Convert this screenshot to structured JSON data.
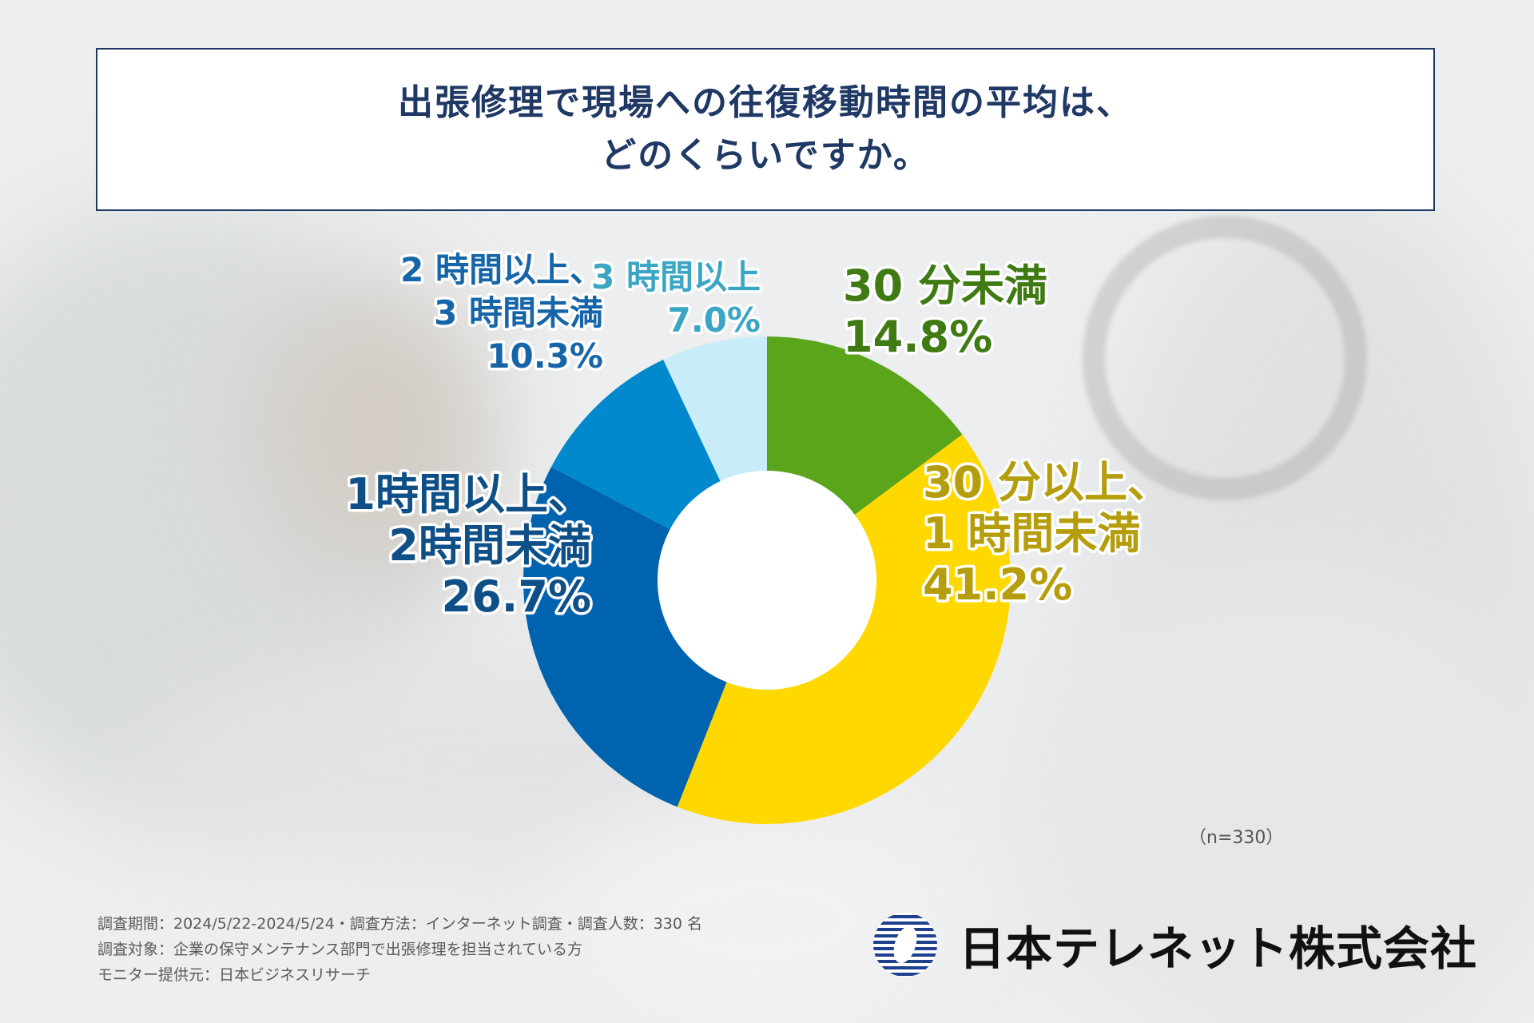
{
  "title": {
    "line1": "出張修理で現場への往復移動時間の平均は、",
    "line2": "どのくらいですか。"
  },
  "chart_data": {
    "type": "pie",
    "variant": "donut",
    "title": "出張修理で現場への往復移動時間の平均は、どのくらいですか。",
    "slices": [
      {
        "label_lines": [
          "30 分未満"
        ],
        "value": 14.8,
        "value_text": "14.8%",
        "color": "#5ba51b",
        "text_color": "#3f7a12"
      },
      {
        "label_lines": [
          "30 分以上、",
          "1 時間未満"
        ],
        "value": 41.2,
        "value_text": "41.2%",
        "color": "#ffd800",
        "text_color": "#b59d0c"
      },
      {
        "label_lines": [
          "1時間以上、",
          "2時間未満"
        ],
        "value": 26.7,
        "value_text": "26.7%",
        "color": "#0063b0",
        "text_color": "#0d4f86"
      },
      {
        "label_lines": [
          "2 時間以上、",
          "3 時間未満"
        ],
        "value": 10.3,
        "value_text": "10.3%",
        "color": "#0288cc",
        "text_color": "#1565a8"
      },
      {
        "label_lines": [
          "3 時間以上"
        ],
        "value": 7.0,
        "value_text": "7.0%",
        "color": "#c9edf8",
        "text_color": "#3aa6c4"
      }
    ],
    "start": "12 o'clock",
    "direction": "clockwise"
  },
  "sample_size": "（n=330）",
  "notes": {
    "line1": "調査期間：2024/5/22-2024/5/24・調査方法：インターネット調査・調査人数：330 名",
    "line2": "調査対象：企業の保守メンテナンス部門で出張修理を担当されている方",
    "line3": "モニター提供元：日本ビジネスリサーチ"
  },
  "logo": {
    "text": "日本テレネット株式会社",
    "icon": "company-logo-icon",
    "color": "#1f3f8f"
  }
}
